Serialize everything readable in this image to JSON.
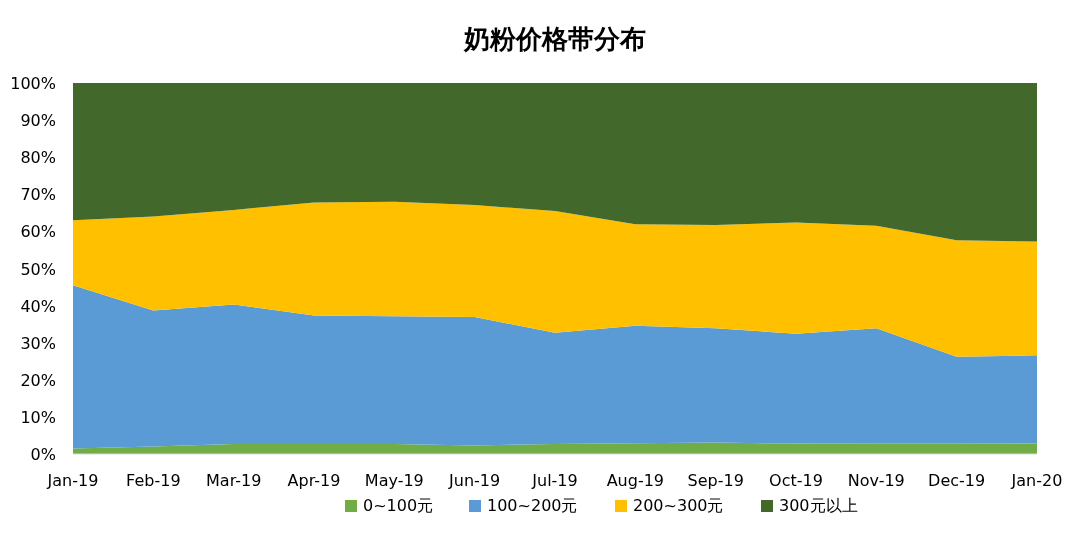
{
  "chart_data": {
    "type": "area",
    "title": "奶粉价格带分布",
    "stacked": true,
    "legend": "bottom",
    "grid": false,
    "categories": [
      "Jan-19",
      "Feb-19",
      "Mar-19",
      "Apr-19",
      "May-19",
      "Jun-19",
      "Jul-19",
      "Aug-19",
      "Sep-19",
      "Oct-19",
      "Nov-19",
      "Dec-19",
      "Jan-20"
    ],
    "series": [
      {
        "name": "0~100元",
        "color": "#70ad47",
        "values": [
          1.5,
          2.0,
          2.7,
          2.7,
          2.7,
          2.3,
          2.7,
          2.9,
          3.1,
          2.8,
          2.9,
          2.9,
          2.8
        ]
      },
      {
        "name": "100~200元",
        "color": "#5b9bd5",
        "values": [
          44.0,
          36.7,
          37.6,
          34.6,
          34.4,
          34.6,
          30.0,
          31.7,
          30.8,
          29.6,
          31.0,
          23.3,
          23.8
        ]
      },
      {
        "name": "200~300元",
        "color": "#ffc000",
        "values": [
          17.5,
          25.3,
          25.5,
          30.5,
          30.9,
          30.2,
          32.8,
          27.3,
          27.8,
          30.0,
          27.6,
          31.4,
          30.7
        ]
      },
      {
        "name": "300元以上",
        "color": "#43682b",
        "values": [
          37.0,
          36.0,
          34.2,
          32.2,
          32.0,
          32.9,
          34.5,
          38.1,
          38.3,
          37.6,
          38.5,
          42.4,
          42.7
        ]
      }
    ],
    "ylim": [
      0,
      100
    ],
    "yticks": [
      {
        "value": 0,
        "label": "0%"
      },
      {
        "value": 10,
        "label": "10%"
      },
      {
        "value": 20,
        "label": "20%"
      },
      {
        "value": 30,
        "label": "30%"
      },
      {
        "value": 40,
        "label": "40%"
      },
      {
        "value": 50,
        "label": "50%"
      },
      {
        "value": 60,
        "label": "60%"
      },
      {
        "value": 70,
        "label": "70%"
      },
      {
        "value": 80,
        "label": "80%"
      },
      {
        "value": 90,
        "label": "90%"
      },
      {
        "value": 100,
        "label": "100%"
      }
    ]
  }
}
